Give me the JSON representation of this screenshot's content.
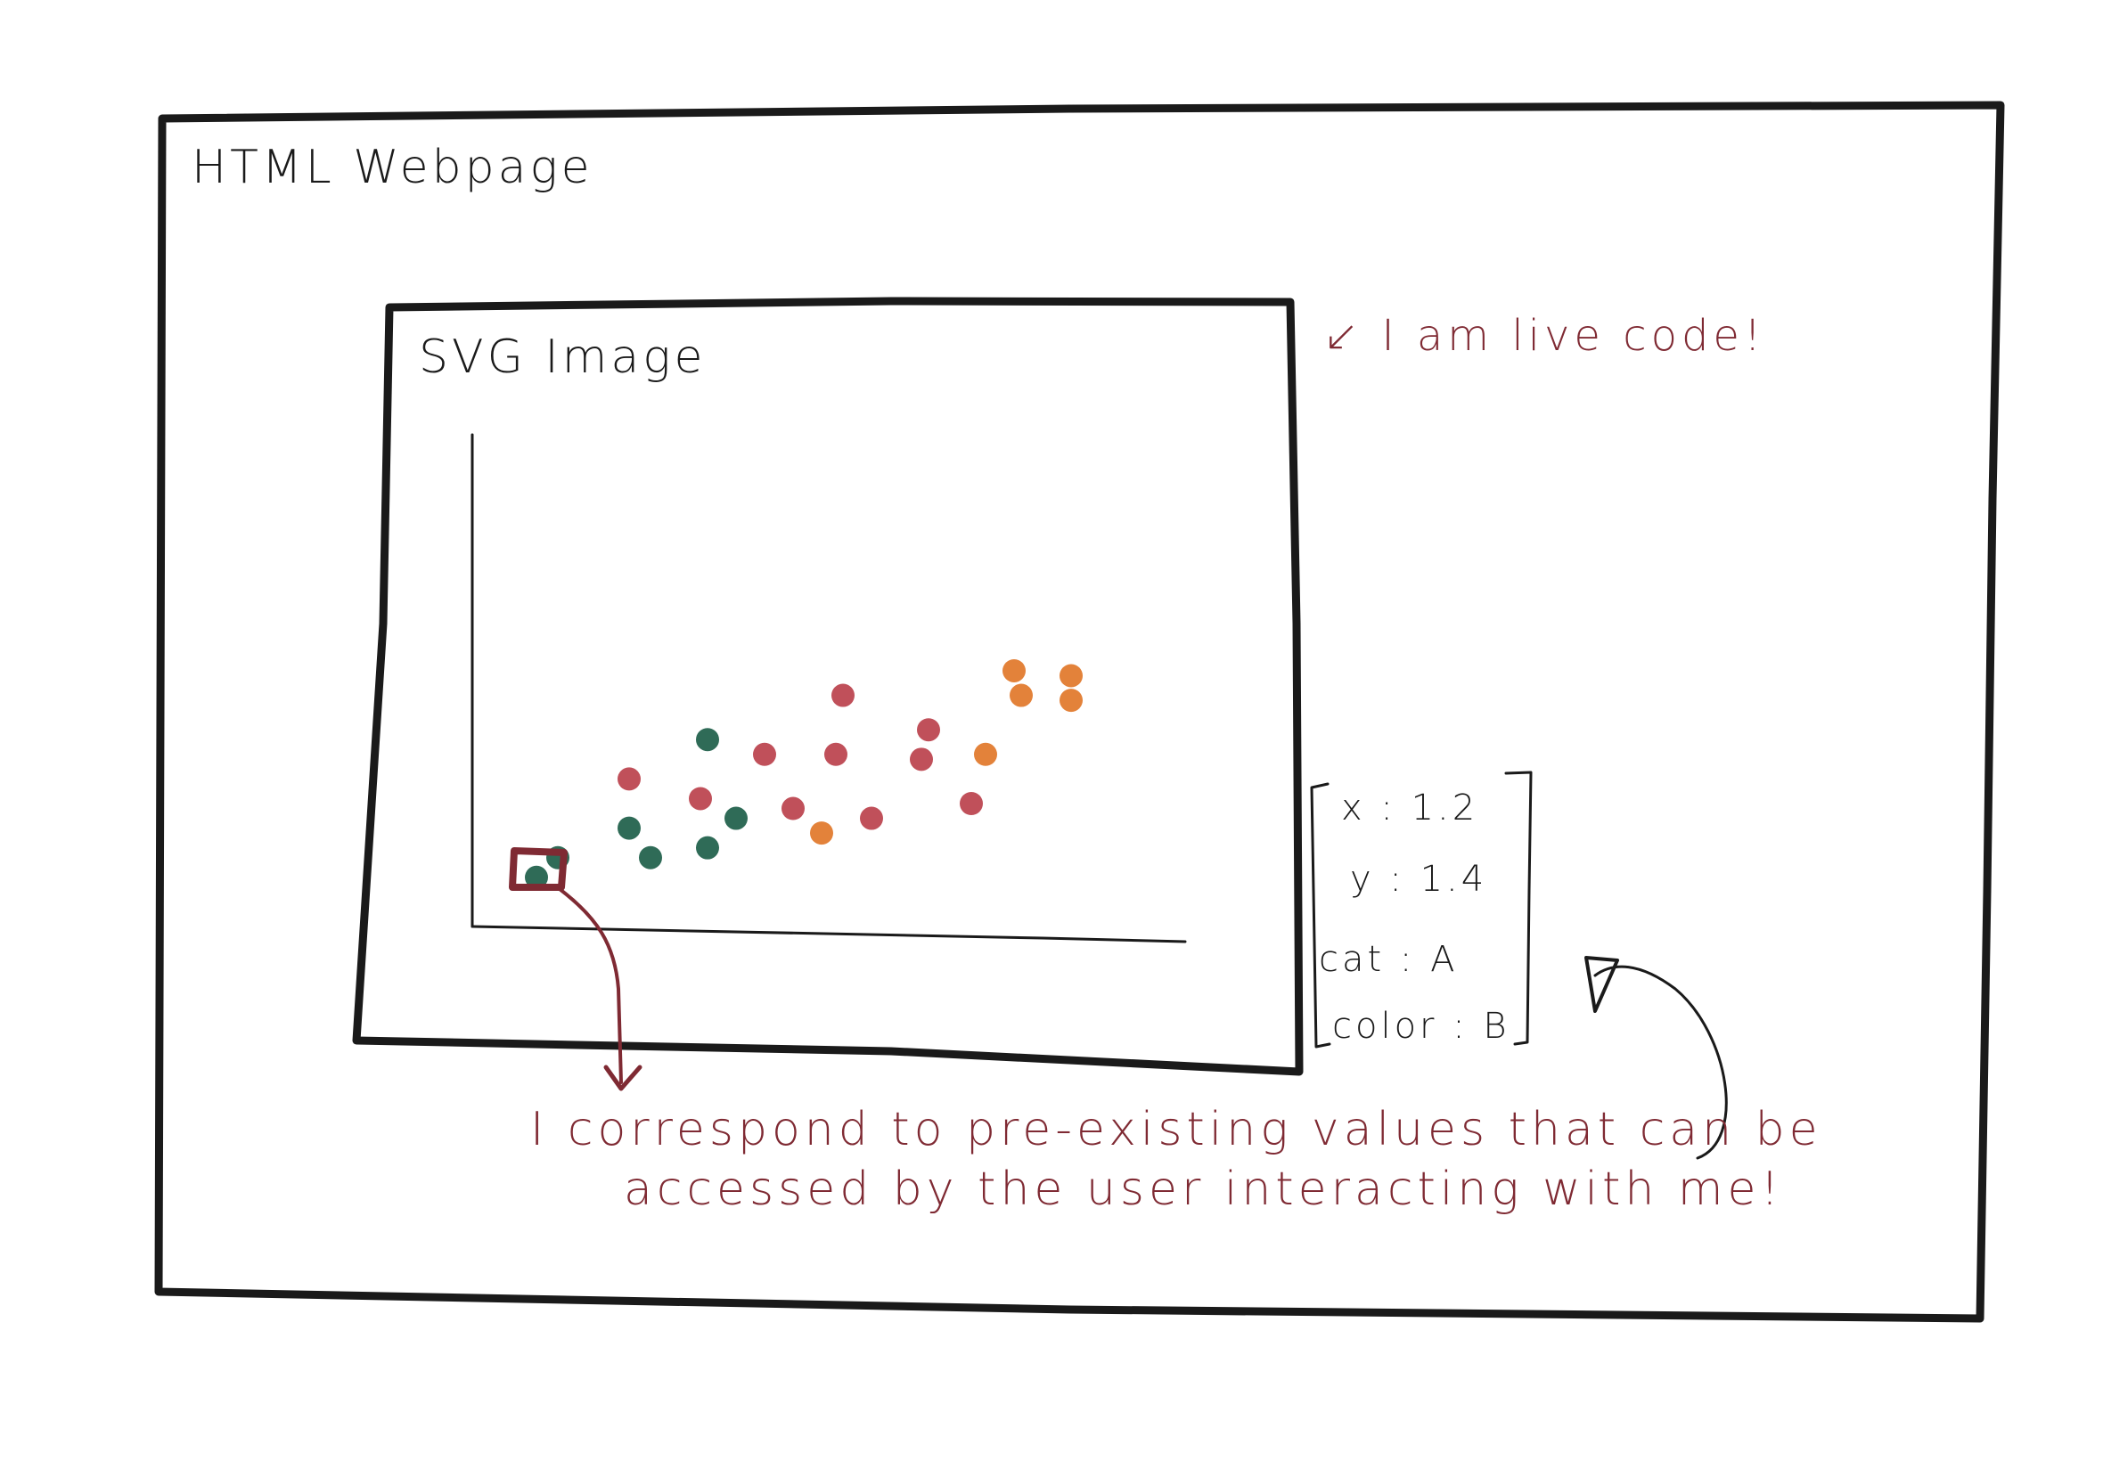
{
  "page_frame": {
    "label": "HTML Webpage"
  },
  "svg_frame": {
    "label": "SVG Image"
  },
  "annotations": {
    "live_code": "↙ I am live code!",
    "correspond_line1": "I correspond to pre-existing values that can be",
    "correspond_line2": "accessed by the user interacting with me!"
  },
  "tooltip": {
    "x_line": "x : 1.2",
    "y_line": "y : 1.4",
    "cat_line": "cat : A",
    "color_line": "color : B"
  },
  "colors": {
    "ink": "#1a1a1a",
    "annotation": "#7f2a33",
    "teal": "#2f6b57",
    "red": "#c0505a",
    "orange": "#e3823a"
  },
  "chart_data": {
    "type": "scatter",
    "title": "",
    "xlabel": "",
    "ylabel": "",
    "xlim": [
      0,
      10
    ],
    "ylim": [
      0,
      10
    ],
    "grid": false,
    "series": [
      {
        "color": "teal",
        "points": [
          [
            0.9,
            1.0
          ],
          [
            1.2,
            1.4
          ],
          [
            2.2,
            2.0
          ],
          [
            2.5,
            1.4
          ],
          [
            3.3,
            1.6
          ],
          [
            3.7,
            2.2
          ],
          [
            3.3,
            3.8
          ]
        ]
      },
      {
        "color": "red",
        "points": [
          [
            2.2,
            3.0
          ],
          [
            3.2,
            2.6
          ],
          [
            4.1,
            3.5
          ],
          [
            4.5,
            2.4
          ],
          [
            5.1,
            3.5
          ],
          [
            5.2,
            4.7
          ],
          [
            5.6,
            2.2
          ],
          [
            6.3,
            3.4
          ],
          [
            6.4,
            4.0
          ],
          [
            7.0,
            2.5
          ]
        ]
      },
      {
        "color": "orange",
        "points": [
          [
            4.9,
            1.9
          ],
          [
            7.2,
            3.5
          ],
          [
            7.6,
            5.2
          ],
          [
            7.7,
            4.7
          ],
          [
            8.4,
            5.1
          ],
          [
            8.4,
            4.6
          ]
        ]
      }
    ],
    "highlighted_point": [
      1.2,
      1.4
    ]
  }
}
